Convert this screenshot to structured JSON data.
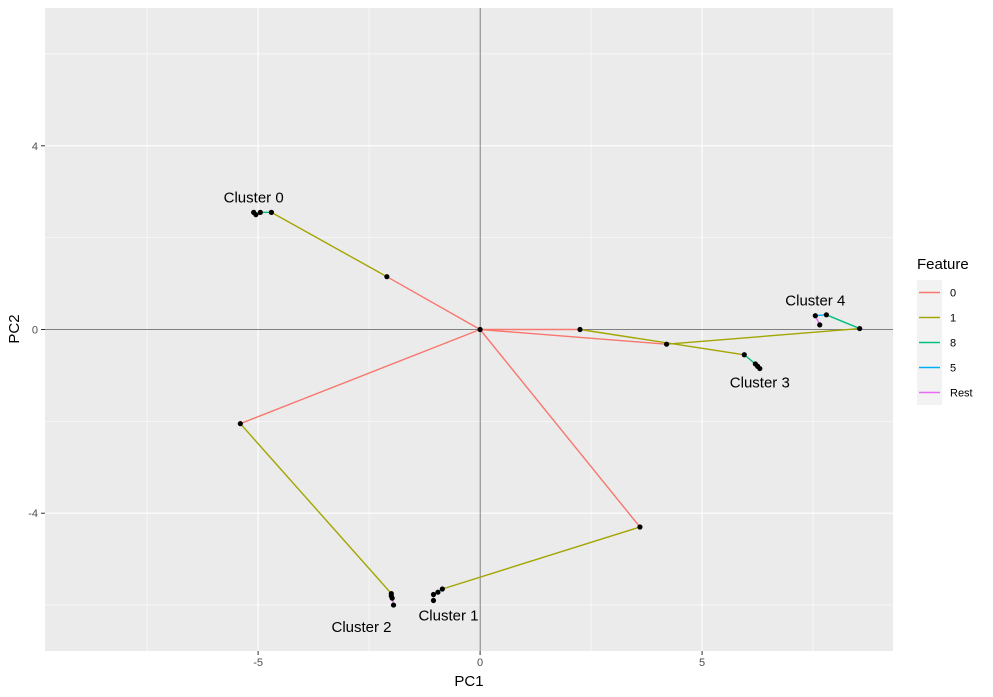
{
  "chart_data": {
    "type": "line",
    "xlabel": "PC1",
    "ylabel": "PC2",
    "xlim": [
      -9.8,
      9.3
    ],
    "ylim": [
      -7.0,
      7.0
    ],
    "x_ticks": [
      -5,
      0,
      5
    ],
    "x_tick_labels": [
      "-5",
      "0",
      "5"
    ],
    "y_ticks": [
      -4,
      0,
      4
    ],
    "y_tick_labels": [
      "-4",
      "0",
      "4"
    ],
    "grid": true,
    "reference_lines": {
      "x": 0,
      "y": 0
    },
    "legend": {
      "title": "Feature",
      "placement": "right",
      "entries": [
        {
          "label": "0",
          "color": "#F8766D"
        },
        {
          "label": "1",
          "color": "#A3A500"
        },
        {
          "label": "8",
          "color": "#00BF7D"
        },
        {
          "label": "5",
          "color": "#00B0F6"
        },
        {
          "label": "Rest",
          "color": "#E76BF3"
        }
      ]
    },
    "segments": [
      {
        "feature": "0",
        "from": [
          0,
          0
        ],
        "to": [
          -2.1,
          1.15
        ]
      },
      {
        "feature": "1",
        "from": [
          -2.1,
          1.15
        ],
        "to": [
          -4.7,
          2.55
        ]
      },
      {
        "feature": "8",
        "from": [
          -4.7,
          2.55
        ],
        "to": [
          -4.95,
          2.55
        ]
      },
      {
        "feature": "5",
        "from": [
          -4.95,
          2.55
        ],
        "to": [
          -5.05,
          2.5
        ]
      },
      {
        "feature": "Rest",
        "from": [
          -5.05,
          2.5
        ],
        "to": [
          -5.1,
          2.55
        ]
      },
      {
        "feature": "0",
        "from": [
          0,
          0
        ],
        "to": [
          3.6,
          -4.3
        ]
      },
      {
        "feature": "1",
        "from": [
          3.6,
          -4.3
        ],
        "to": [
          -0.85,
          -5.65
        ]
      },
      {
        "feature": "8",
        "from": [
          -0.85,
          -5.65
        ],
        "to": [
          -0.95,
          -5.72
        ]
      },
      {
        "feature": "5",
        "from": [
          -0.95,
          -5.72
        ],
        "to": [
          -1.05,
          -5.77
        ]
      },
      {
        "feature": "Rest",
        "from": [
          -1.05,
          -5.77
        ],
        "to": [
          -1.05,
          -5.9
        ]
      },
      {
        "feature": "0",
        "from": [
          0,
          0
        ],
        "to": [
          -5.4,
          -2.05
        ]
      },
      {
        "feature": "1",
        "from": [
          -5.4,
          -2.05
        ],
        "to": [
          -2.0,
          -5.75
        ]
      },
      {
        "feature": "8",
        "from": [
          -2.0,
          -5.75
        ],
        "to": [
          -2.0,
          -5.8
        ]
      },
      {
        "feature": "5",
        "from": [
          -2.0,
          -5.8
        ],
        "to": [
          -1.98,
          -5.85
        ]
      },
      {
        "feature": "Rest",
        "from": [
          -1.98,
          -5.85
        ],
        "to": [
          -1.95,
          -6.0
        ]
      },
      {
        "feature": "0",
        "from": [
          0,
          0
        ],
        "to": [
          4.2,
          -0.32
        ]
      },
      {
        "feature": "1",
        "from": [
          4.2,
          -0.32
        ],
        "to": [
          8.55,
          0.02
        ]
      },
      {
        "feature": "8",
        "from": [
          8.55,
          0.02
        ],
        "to": [
          7.8,
          0.32
        ]
      },
      {
        "feature": "5",
        "from": [
          7.8,
          0.32
        ],
        "to": [
          7.55,
          0.3
        ]
      },
      {
        "feature": "Rest",
        "from": [
          7.55,
          0.3
        ],
        "to": [
          7.65,
          0.1
        ]
      },
      {
        "feature": "0",
        "from": [
          0,
          0
        ],
        "to": [
          2.25,
          0
        ]
      },
      {
        "feature": "1",
        "from": [
          2.25,
          0
        ],
        "to": [
          5.95,
          -0.55
        ]
      },
      {
        "feature": "8",
        "from": [
          5.95,
          -0.55
        ],
        "to": [
          6.2,
          -0.75
        ]
      },
      {
        "feature": "5",
        "from": [
          6.2,
          -0.75
        ],
        "to": [
          6.25,
          -0.8
        ]
      },
      {
        "feature": "Rest",
        "from": [
          6.25,
          -0.8
        ],
        "to": [
          6.3,
          -0.85
        ]
      }
    ],
    "points": [
      [
        0,
        0
      ],
      [
        -2.1,
        1.15
      ],
      [
        -4.7,
        2.55
      ],
      [
        -4.95,
        2.55
      ],
      [
        -5.05,
        2.5
      ],
      [
        -5.1,
        2.55
      ],
      [
        3.6,
        -4.3
      ],
      [
        -0.85,
        -5.65
      ],
      [
        -0.95,
        -5.72
      ],
      [
        -1.05,
        -5.77
      ],
      [
        -1.05,
        -5.9
      ],
      [
        -5.4,
        -2.05
      ],
      [
        -2.0,
        -5.75
      ],
      [
        -2.0,
        -5.8
      ],
      [
        -1.98,
        -5.85
      ],
      [
        -1.95,
        -6.0
      ],
      [
        4.2,
        -0.32
      ],
      [
        8.55,
        0.02
      ],
      [
        7.8,
        0.32
      ],
      [
        7.55,
        0.3
      ],
      [
        7.65,
        0.1
      ],
      [
        2.25,
        0
      ],
      [
        5.95,
        -0.55
      ],
      [
        6.2,
        -0.75
      ],
      [
        6.25,
        -0.8
      ],
      [
        6.3,
        -0.85
      ]
    ],
    "annotations": [
      {
        "text": "Cluster 0",
        "x": -5.1,
        "y": 2.55,
        "anchor": "above"
      },
      {
        "text": "Cluster 1",
        "x": -1.05,
        "y": -5.9,
        "anchor": "below-right"
      },
      {
        "text": "Cluster 2",
        "x": -1.95,
        "y": -6.0,
        "anchor": "below-left"
      },
      {
        "text": "Cluster 3",
        "x": 6.3,
        "y": -0.85,
        "anchor": "below"
      },
      {
        "text": "Cluster 4",
        "x": 7.55,
        "y": 0.3,
        "anchor": "above"
      }
    ]
  }
}
